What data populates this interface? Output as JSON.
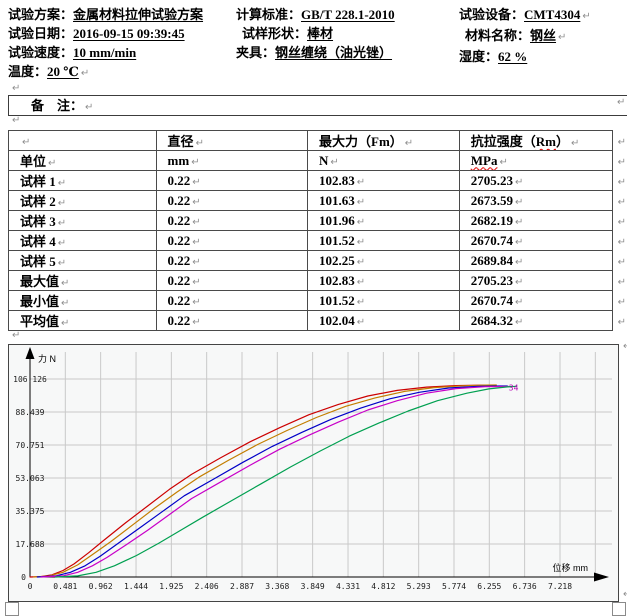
{
  "ui": {
    "pilcrow": "↵"
  },
  "header": {
    "columns": [
      {
        "fields": [
          {
            "label": "试验方案：",
            "value": "金属材料拉伸试验方案"
          },
          {
            "label": "试验日期：",
            "value": "2016-09-15 09:39:45"
          },
          {
            "label": "试验速度：",
            "value": "10 mm/min"
          },
          {
            "label": "温度：",
            "value": "20 ℃"
          }
        ]
      },
      {
        "fields": [
          {
            "label": "计算标准：",
            "value": "GB/T 228.1-2010"
          },
          {
            "label": "试样形状：",
            "value": "棒材"
          },
          {
            "label": "夹具：",
            "value": "钢丝缠绕（油光锉）"
          }
        ]
      },
      {
        "fields": [
          {
            "label": "试验设备：",
            "value": "CMT4304"
          },
          {
            "label": "材料名称：",
            "value": "钢丝"
          },
          {
            "label": "湿度：",
            "value": "62 %"
          }
        ]
      }
    ]
  },
  "remarks": {
    "label": "备　注："
  },
  "table": {
    "header": {
      "c0": "",
      "c1": "直径",
      "c2": "最大力（Fm）",
      "c3_pre": "抗拉强度（",
      "c3_mark": "Rm",
      "c3_post": "）"
    },
    "units": {
      "label": "单位",
      "c1": "mm",
      "c2": "N",
      "c3_mark": "MPa"
    },
    "rows": [
      {
        "label": "试样 1",
        "values": [
          "0.22",
          "102.83",
          "2705.23"
        ]
      },
      {
        "label": "试样 2",
        "values": [
          "0.22",
          "101.63",
          "2673.59"
        ]
      },
      {
        "label": "试样 3",
        "values": [
          "0.22",
          "101.96",
          "2682.19"
        ]
      },
      {
        "label": "试样 4",
        "values": [
          "0.22",
          "101.52",
          "2670.74"
        ]
      },
      {
        "label": "试样 5",
        "values": [
          "0.22",
          "102.25",
          "2689.84"
        ]
      },
      {
        "label": "最大值",
        "values": [
          "0.22",
          "102.83",
          "2705.23"
        ]
      },
      {
        "label": "最小值",
        "values": [
          "0.22",
          "101.52",
          "2670.74"
        ]
      },
      {
        "label": "平均值",
        "values": [
          "0.22",
          "102.04",
          "2684.32"
        ]
      }
    ]
  },
  "chart_data": {
    "type": "line",
    "title": "",
    "xlabel": "位移 mm",
    "ylabel": "力 N",
    "xlim": [
      0,
      8.0
    ],
    "ylim": [
      0,
      113
    ],
    "grid": true,
    "legend_position": "none",
    "x_ticks": [
      0,
      0.481,
      0.962,
      1.444,
      1.925,
      2.406,
      2.887,
      3.368,
      3.849,
      4.331,
      4.812,
      5.293,
      5.774,
      6.255,
      6.736,
      7.218
    ],
    "x_tick_labels": [
      "0",
      "0.481",
      "0.962",
      "1.444",
      "1.925",
      "2.406",
      "2.887",
      "3.368",
      "3.849",
      "4.331",
      "4.812",
      "5.293",
      "5.774",
      "6.255",
      "6.736",
      "7.218"
    ],
    "x_extra_gridline": 7.699,
    "y_ticks": [
      0,
      17.688,
      35.375,
      53.063,
      70.751,
      88.439,
      106.126
    ],
    "y_tick_labels": [
      "0",
      "17.688",
      "35.375",
      "53.063",
      "70.751",
      "88.439",
      "106.126"
    ],
    "annotation": {
      "text": "34",
      "x": 6.52,
      "y": 100.0,
      "color": "#b400b4"
    },
    "colors": {
      "grid": "#c9c9c9",
      "plot_bg": "#f7f8f8",
      "frame": "#454545",
      "axis": "#000000"
    },
    "series": [
      {
        "name": "试样 1",
        "color": "#cc0000",
        "points": [
          [
            0,
            0
          ],
          [
            0.15,
            0.2
          ],
          [
            0.3,
            1.2
          ],
          [
            0.45,
            3.5
          ],
          [
            0.6,
            7
          ],
          [
            0.8,
            13
          ],
          [
            1.0,
            19.5
          ],
          [
            1.3,
            29
          ],
          [
            1.6,
            38
          ],
          [
            1.9,
            47
          ],
          [
            2.2,
            55
          ],
          [
            2.6,
            64
          ],
          [
            3.0,
            72.5
          ],
          [
            3.4,
            80
          ],
          [
            3.8,
            87
          ],
          [
            4.2,
            92.5
          ],
          [
            4.6,
            97
          ],
          [
            5.0,
            100
          ],
          [
            5.4,
            101.8
          ],
          [
            5.8,
            102.6
          ],
          [
            6.1,
            102.8
          ],
          [
            6.28,
            102.83
          ]
        ]
      },
      {
        "name": "试样 2",
        "color": "#c37e00",
        "points": [
          [
            0.05,
            0
          ],
          [
            0.25,
            0.5
          ],
          [
            0.45,
            2.5
          ],
          [
            0.65,
            6.5
          ],
          [
            0.85,
            12
          ],
          [
            1.1,
            19
          ],
          [
            1.4,
            28
          ],
          [
            1.7,
            37
          ],
          [
            2.0,
            45.5
          ],
          [
            2.3,
            53.5
          ],
          [
            2.7,
            62.5
          ],
          [
            3.1,
            71
          ],
          [
            3.5,
            78.5
          ],
          [
            3.9,
            85.5
          ],
          [
            4.3,
            91.5
          ],
          [
            4.7,
            96
          ],
          [
            5.1,
            99.5
          ],
          [
            5.5,
            101.5
          ],
          [
            5.9,
            102.5
          ],
          [
            6.2,
            102.85
          ],
          [
            6.35,
            102.9
          ]
        ]
      },
      {
        "name": "试样 3",
        "color": "#0000c8",
        "points": [
          [
            0.1,
            0
          ],
          [
            0.35,
            0.6
          ],
          [
            0.55,
            2.5
          ],
          [
            0.75,
            6
          ],
          [
            0.95,
            11
          ],
          [
            1.2,
            18
          ],
          [
            1.5,
            26.5
          ],
          [
            1.8,
            35
          ],
          [
            2.1,
            43.5
          ],
          [
            2.5,
            52.5
          ],
          [
            2.9,
            61.5
          ],
          [
            3.3,
            70
          ],
          [
            3.7,
            77.5
          ],
          [
            4.1,
            84.5
          ],
          [
            4.5,
            90.5
          ],
          [
            4.9,
            95.5
          ],
          [
            5.3,
            99
          ],
          [
            5.7,
            101.3
          ],
          [
            6.1,
            102.2
          ],
          [
            6.4,
            102.35
          ],
          [
            6.5,
            102.35
          ]
        ]
      },
      {
        "name": "试样 4",
        "color": "#c800c8",
        "points": [
          [
            0.15,
            0
          ],
          [
            0.45,
            0.6
          ],
          [
            0.65,
            2.5
          ],
          [
            0.85,
            6
          ],
          [
            1.05,
            10.5
          ],
          [
            1.3,
            17
          ],
          [
            1.6,
            25
          ],
          [
            1.9,
            33.5
          ],
          [
            2.2,
            42
          ],
          [
            2.6,
            51
          ],
          [
            3.0,
            60
          ],
          [
            3.4,
            68.5
          ],
          [
            3.8,
            76
          ],
          [
            4.2,
            83
          ],
          [
            4.6,
            89.5
          ],
          [
            5.0,
            94.5
          ],
          [
            5.4,
            98.5
          ],
          [
            5.8,
            101
          ],
          [
            6.2,
            102
          ],
          [
            6.45,
            102.1
          ],
          [
            6.55,
            102.1
          ]
        ]
      },
      {
        "name": "试样 5",
        "color": "#00a050",
        "points": [
          [
            0.35,
            0
          ],
          [
            0.65,
            0.6
          ],
          [
            0.9,
            2.5
          ],
          [
            1.15,
            6
          ],
          [
            1.45,
            11.5
          ],
          [
            1.75,
            18
          ],
          [
            2.05,
            25
          ],
          [
            2.35,
            32
          ],
          [
            2.75,
            41
          ],
          [
            3.15,
            50
          ],
          [
            3.55,
            59
          ],
          [
            3.95,
            67.5
          ],
          [
            4.35,
            75.5
          ],
          [
            4.75,
            82.5
          ],
          [
            5.15,
            89
          ],
          [
            5.55,
            94.5
          ],
          [
            5.95,
            98.5
          ],
          [
            6.25,
            100.8
          ],
          [
            6.5,
            101.9
          ],
          [
            6.62,
            102.2
          ]
        ]
      }
    ]
  }
}
